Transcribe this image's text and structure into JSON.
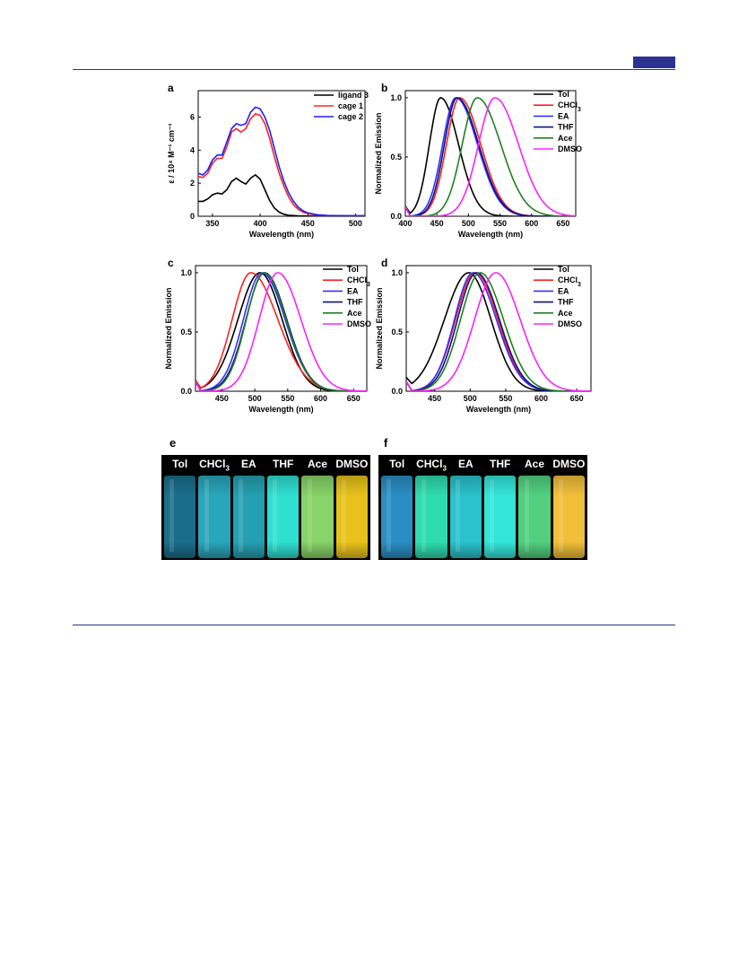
{
  "figure": {
    "panel_letters": {
      "a": "a",
      "b": "b",
      "c": "c",
      "d": "d",
      "e": "e",
      "f": "f"
    }
  },
  "chart_data": [
    {
      "panel": "a",
      "type": "line",
      "xlabel": "Wavelength (nm)",
      "ylabel": "ε / 10⁴ M⁻¹ cm⁻¹",
      "xlim": [
        335,
        510
      ],
      "ylim": [
        0,
        7.6
      ],
      "xticks": [
        350,
        400,
        450,
        500
      ],
      "yticks": [
        0,
        2,
        4,
        6
      ],
      "legend_position": "top-right",
      "series": [
        {
          "name": "ligand 3",
          "color": "#000000",
          "x": [
            335,
            340,
            345,
            350,
            355,
            360,
            365,
            370,
            375,
            380,
            385,
            390,
            395,
            400,
            405,
            410,
            415,
            420,
            425,
            430,
            440,
            450,
            460,
            480,
            500,
            510
          ],
          "y": [
            0.9,
            0.9,
            1.05,
            1.3,
            1.4,
            1.35,
            1.6,
            2.1,
            2.3,
            2.1,
            1.95,
            2.3,
            2.5,
            2.25,
            1.6,
            0.95,
            0.5,
            0.25,
            0.12,
            0.06,
            0.02,
            0.01,
            0.0,
            0.0,
            0.0,
            0.0
          ]
        },
        {
          "name": "cage 1",
          "color": "#ff2020",
          "x": [
            335,
            340,
            345,
            350,
            355,
            360,
            365,
            370,
            375,
            380,
            385,
            390,
            395,
            400,
            405,
            410,
            415,
            420,
            425,
            430,
            435,
            440,
            445,
            450,
            460,
            470,
            480,
            500,
            510
          ],
          "y": [
            2.4,
            2.35,
            2.6,
            3.2,
            3.5,
            3.5,
            4.2,
            5.1,
            5.3,
            5.1,
            5.3,
            5.9,
            6.2,
            6.1,
            5.6,
            4.7,
            3.6,
            2.6,
            1.8,
            1.15,
            0.7,
            0.42,
            0.25,
            0.15,
            0.07,
            0.04,
            0.03,
            0.02,
            0.02
          ]
        },
        {
          "name": "cage 2",
          "color": "#2020ff",
          "x": [
            335,
            340,
            345,
            350,
            355,
            360,
            365,
            370,
            375,
            380,
            385,
            390,
            395,
            400,
            405,
            410,
            415,
            420,
            425,
            430,
            435,
            440,
            445,
            450,
            460,
            470,
            480,
            500,
            510
          ],
          "y": [
            2.6,
            2.5,
            2.8,
            3.4,
            3.7,
            3.7,
            4.5,
            5.3,
            5.6,
            5.5,
            5.6,
            6.3,
            6.6,
            6.5,
            6.0,
            5.2,
            4.1,
            3.0,
            2.1,
            1.4,
            0.9,
            0.55,
            0.33,
            0.2,
            0.09,
            0.05,
            0.04,
            0.03,
            0.03
          ]
        }
      ]
    },
    {
      "panel": "b",
      "type": "line",
      "xlabel": "Wavelength (nm)",
      "ylabel": "Normalized Emission",
      "xlim": [
        400,
        670
      ],
      "ylim": [
        0,
        1.06
      ],
      "xticks": [
        400,
        450,
        500,
        550,
        600,
        650
      ],
      "yticks": [
        0.0,
        0.5,
        1.0
      ],
      "ytick_labels": [
        "0.0",
        "0.5",
        "1.0"
      ],
      "legend_position": "top-right",
      "series": [
        {
          "name": "Tol",
          "color": "#000000",
          "peak": 456,
          "wl": 24,
          "wr": 38,
          "floor": 0.03
        },
        {
          "name": "CHCl3",
          "color": "#ff2020",
          "peak": 486,
          "wl": 28,
          "wr": 45,
          "floor": 0.03
        },
        {
          "name": "EA",
          "color": "#3030ff",
          "peak": 480,
          "wl": 28,
          "wr": 46,
          "floor": 0.04
        },
        {
          "name": "THF",
          "color": "#101080",
          "peak": 482,
          "wl": 27,
          "wr": 46,
          "floor": 0.03
        },
        {
          "name": "Ace",
          "color": "#208020",
          "peak": 514,
          "wl": 32,
          "wr": 50,
          "floor": 0.02
        },
        {
          "name": "DMSO",
          "color": "#ff20ff",
          "peak": 542,
          "wl": 35,
          "wr": 50,
          "floor": 0.01
        }
      ]
    },
    {
      "panel": "c",
      "type": "line",
      "xlabel": "Wavelength (nm)",
      "ylabel": "Normalized Emission",
      "xlim": [
        410,
        670
      ],
      "ylim": [
        0,
        1.06
      ],
      "xticks": [
        450,
        500,
        550,
        600,
        650
      ],
      "yticks": [
        0.0,
        0.5,
        1.0
      ],
      "ytick_labels": [
        "0.0",
        "0.5",
        "1.0"
      ],
      "legend_position": "top-right",
      "series": [
        {
          "name": "Tol",
          "color": "#000000",
          "peak": 508,
          "wl": 45,
          "wr": 45,
          "floor": 0.0
        },
        {
          "name": "CHCl3",
          "color": "#ff2020",
          "peak": 494,
          "wl": 38,
          "wr": 55,
          "floor": 0.0
        },
        {
          "name": "EA",
          "color": "#3030ff",
          "peak": 511,
          "wl": 38,
          "wr": 47,
          "floor": 0.0
        },
        {
          "name": "THF",
          "color": "#101080",
          "peak": 515,
          "wl": 38,
          "wr": 45,
          "floor": 0.0
        },
        {
          "name": "Ace",
          "color": "#208020",
          "peak": 514,
          "wl": 36,
          "wr": 45,
          "floor": 0.0
        },
        {
          "name": "DMSO",
          "color": "#ff20ff",
          "peak": 535,
          "wl": 38,
          "wr": 47,
          "floor": 0.0
        }
      ]
    },
    {
      "panel": "d",
      "type": "line",
      "xlabel": "Wavelength (nm)",
      "ylabel": "Normalized Emission",
      "xlim": [
        410,
        670
      ],
      "ylim": [
        0,
        1.06
      ],
      "xticks": [
        450,
        500,
        550,
        600,
        650
      ],
      "yticks": [
        0.0,
        0.5,
        1.0
      ],
      "ytick_labels": [
        "0.0",
        "0.5",
        "1.0"
      ],
      "legend_position": "top-right",
      "series": [
        {
          "name": "Tol",
          "color": "#000000",
          "peak": 498,
          "wl": 46,
          "wr": 42,
          "floor": 0.0
        },
        {
          "name": "CHCl3",
          "color": "#ff2020",
          "peak": 507,
          "wl": 37,
          "wr": 43,
          "floor": 0.0
        },
        {
          "name": "EA",
          "color": "#3030ff",
          "peak": 504,
          "wl": 35,
          "wr": 44,
          "floor": 0.0
        },
        {
          "name": "THF",
          "color": "#101080",
          "peak": 509,
          "wl": 36,
          "wr": 43,
          "floor": 0.0
        },
        {
          "name": "Ace",
          "color": "#208020",
          "peak": 514,
          "wl": 37,
          "wr": 44,
          "floor": 0.0
        },
        {
          "name": "DMSO",
          "color": "#ff20ff",
          "peak": 536,
          "wl": 40,
          "wr": 46,
          "floor": 0.0
        }
      ]
    }
  ],
  "photos": [
    {
      "panel": "e",
      "vials": [
        {
          "label": "Tol",
          "color": "#1a6e8c"
        },
        {
          "label": "CHCl3",
          "color": "#2aa6bc"
        },
        {
          "label": "EA",
          "color": "#25a0b2"
        },
        {
          "label": "THF",
          "color": "#2ee0d2"
        },
        {
          "label": "Ace",
          "color": "#88d36a"
        },
        {
          "label": "DMSO",
          "color": "#e8c21a"
        }
      ]
    },
    {
      "panel": "f",
      "vials": [
        {
          "label": "Tol",
          "color": "#2a8ec4"
        },
        {
          "label": "CHCl3",
          "color": "#2fdcae"
        },
        {
          "label": "EA",
          "color": "#2ac2cc"
        },
        {
          "label": "THF",
          "color": "#34e6da"
        },
        {
          "label": "Ace",
          "color": "#52d080"
        },
        {
          "label": "DMSO",
          "color": "#f2bf3a"
        }
      ]
    }
  ]
}
